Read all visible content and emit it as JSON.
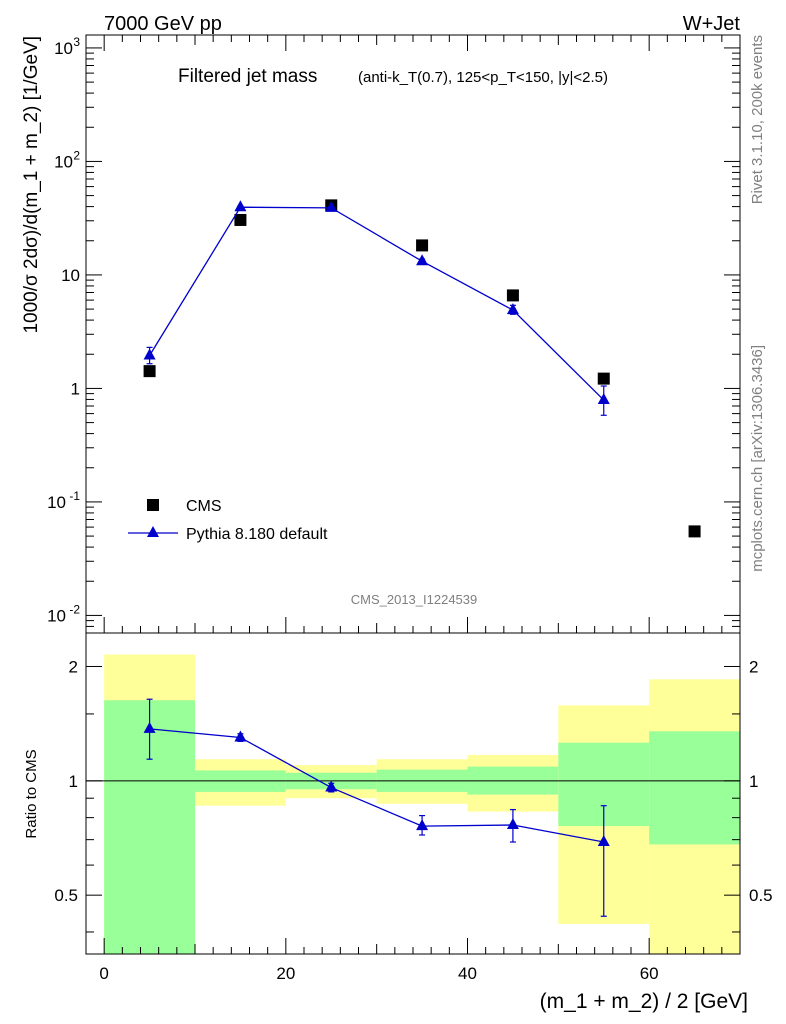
{
  "header": {
    "energy_label": "7000 GeV pp",
    "process_label": "W+Jet"
  },
  "side_labels": {
    "rivet": "Rivet 3.1.10,  200k events",
    "mcplots": "mcplots.cern.ch [arXiv:1306.3436]"
  },
  "chart_data": [
    {
      "type": "scatter",
      "title_main": "Filtered jet mass",
      "title_cuts": "(anti-k_T(0.7), 125<p_T<150, |y|<2.5)",
      "analysis_id": "CMS_2013_I1224539",
      "xlabel": "(m_1 + m_2) / 2 [GeV]",
      "ylabel": "1000/σ 2dσ)/d(m_1 + m_2) [1/GeV]",
      "yscale": "log",
      "xlim": [
        -2,
        70
      ],
      "ylim": [
        0.007,
        1300
      ],
      "x_ticks": [
        "0",
        "20",
        "40",
        "60"
      ],
      "y_ticks": [
        "10^-2",
        "10^-1",
        "1",
        "10",
        "10^2",
        "10^3"
      ],
      "legend_placement": "bottom-left",
      "series": [
        {
          "name": "CMS",
          "style": "black-square-markers",
          "color": "#000000",
          "points": [
            {
              "x": 5,
              "y": 1.42
            },
            {
              "x": 15,
              "y": 30.5
            },
            {
              "x": 25,
              "y": 41.0
            },
            {
              "x": 35,
              "y": 18.2
            },
            {
              "x": 45,
              "y": 6.6
            },
            {
              "x": 55,
              "y": 1.22
            },
            {
              "x": 65,
              "y": 0.055
            }
          ]
        },
        {
          "name": "Pythia 8.180 default",
          "style": "blue-triangle-line",
          "color": "#0000cc",
          "points": [
            {
              "x": 5,
              "y": 1.95,
              "ylo": 1.65,
              "yhi": 2.3
            },
            {
              "x": 15,
              "y": 39.5,
              "ylo": 38.5,
              "yhi": 40.5
            },
            {
              "x": 25,
              "y": 39.0,
              "ylo": 38.0,
              "yhi": 40.0
            },
            {
              "x": 35,
              "y": 13.2,
              "ylo": 12.6,
              "yhi": 13.8
            },
            {
              "x": 45,
              "y": 4.9,
              "ylo": 4.5,
              "yhi": 5.4
            },
            {
              "x": 55,
              "y": 0.79,
              "ylo": 0.58,
              "yhi": 1.05
            }
          ]
        }
      ]
    },
    {
      "type": "scatter",
      "ylabel": "Ratio to CMS",
      "yscale": "log",
      "xlim": [
        -2,
        70
      ],
      "ylim": [
        0.35,
        2.45
      ],
      "y_ticks": [
        "0.5",
        "1",
        "2"
      ],
      "reference_line": 1,
      "band_colors": {
        "inner": "#99ff99",
        "outer": "#ffff99"
      },
      "bands": [
        {
          "x0": 0,
          "x1": 10,
          "inner_lo": 0.35,
          "inner_hi": 1.63,
          "outer_lo": 0.35,
          "outer_hi": 2.15
        },
        {
          "x0": 10,
          "x1": 20,
          "inner_lo": 0.935,
          "inner_hi": 1.065,
          "outer_lo": 0.86,
          "outer_hi": 1.14
        },
        {
          "x0": 20,
          "x1": 30,
          "inner_lo": 0.95,
          "inner_hi": 1.05,
          "outer_lo": 0.9,
          "outer_hi": 1.1
        },
        {
          "x0": 30,
          "x1": 40,
          "inner_lo": 0.935,
          "inner_hi": 1.07,
          "outer_lo": 0.87,
          "outer_hi": 1.14
        },
        {
          "x0": 40,
          "x1": 50,
          "inner_lo": 0.92,
          "inner_hi": 1.09,
          "outer_lo": 0.83,
          "outer_hi": 1.17
        },
        {
          "x0": 50,
          "x1": 60,
          "inner_lo": 0.76,
          "inner_hi": 1.26,
          "outer_lo": 0.42,
          "outer_hi": 1.58
        },
        {
          "x0": 60,
          "x1": 70,
          "inner_lo": 0.68,
          "inner_hi": 1.35,
          "outer_lo": 0.35,
          "outer_hi": 1.85
        }
      ],
      "series": [
        {
          "name": "Pythia 8.180 default",
          "color": "#0000cc",
          "points": [
            {
              "x": 5,
              "y": 1.37,
              "ylo": 1.14,
              "yhi": 1.64
            },
            {
              "x": 15,
              "y": 1.3,
              "ylo": 1.27,
              "yhi": 1.33
            },
            {
              "x": 25,
              "y": 0.96,
              "ylo": 0.935,
              "yhi": 0.985
            },
            {
              "x": 35,
              "y": 0.76,
              "ylo": 0.72,
              "yhi": 0.81
            },
            {
              "x": 45,
              "y": 0.765,
              "ylo": 0.69,
              "yhi": 0.84
            },
            {
              "x": 55,
              "y": 0.69,
              "ylo": 0.44,
              "yhi": 0.86
            }
          ]
        }
      ]
    }
  ]
}
